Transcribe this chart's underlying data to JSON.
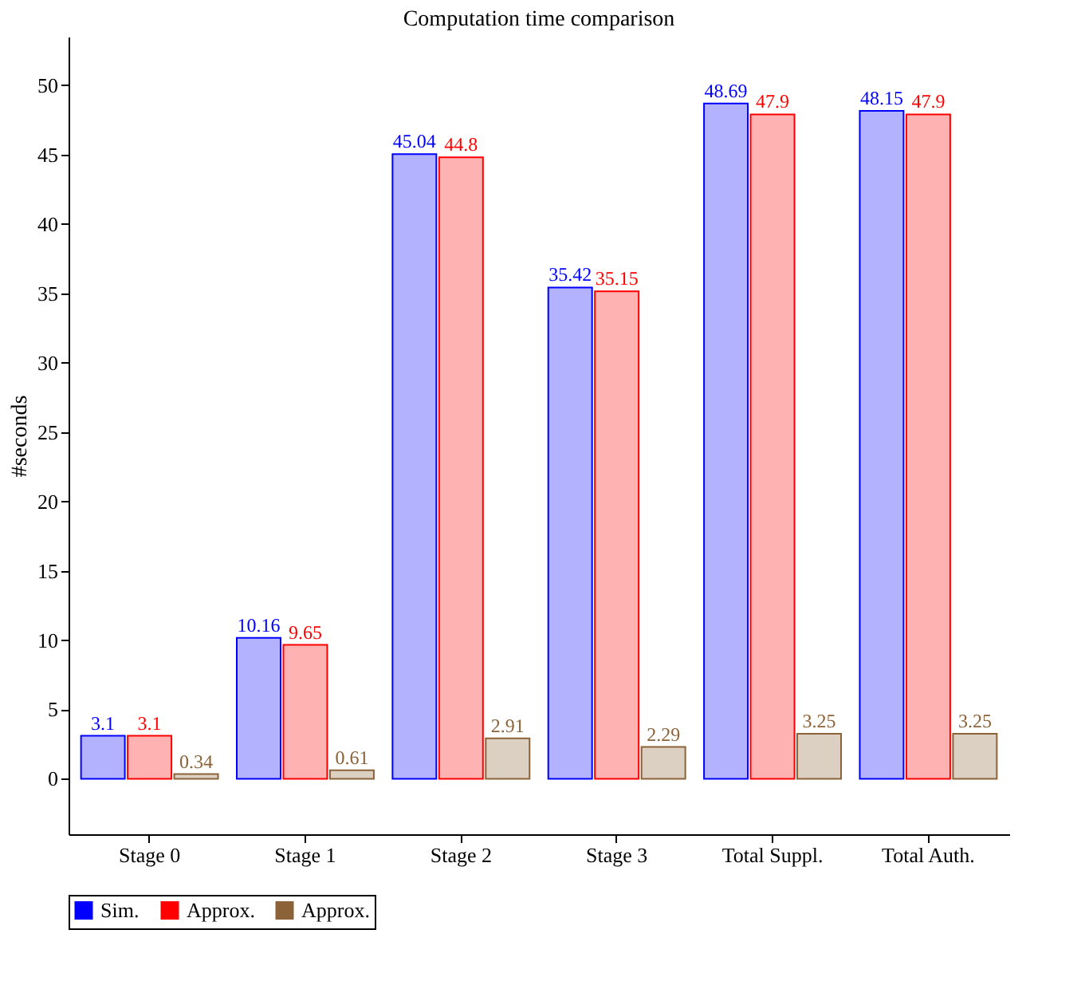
{
  "chart_data": {
    "type": "bar",
    "title": "Computation time comparison",
    "ylabel": "#seconds",
    "categories": [
      "Stage 0",
      "Stage 1",
      "Stage 2",
      "Stage 3",
      "Total Suppl.",
      "Total Auth."
    ],
    "series": [
      {
        "name": "Sim.",
        "color": "#0000ff",
        "values": [
          3.1,
          10.16,
          45.04,
          35.42,
          48.69,
          48.15
        ]
      },
      {
        "name": "Approx.",
        "color": "#ff0000",
        "values": [
          3.1,
          9.65,
          44.8,
          35.15,
          47.9,
          47.9
        ]
      },
      {
        "name": "Approx.",
        "color": "#8c6239",
        "values": [
          0.34,
          0.61,
          2.91,
          2.29,
          3.25,
          3.25
        ]
      }
    ],
    "ylim": [
      -4,
      53.5
    ],
    "yticks": [
      0,
      5,
      10,
      15,
      20,
      25,
      30,
      35,
      40,
      45,
      50
    ],
    "data_labels": true,
    "legend": "bottom",
    "grid": false
  }
}
